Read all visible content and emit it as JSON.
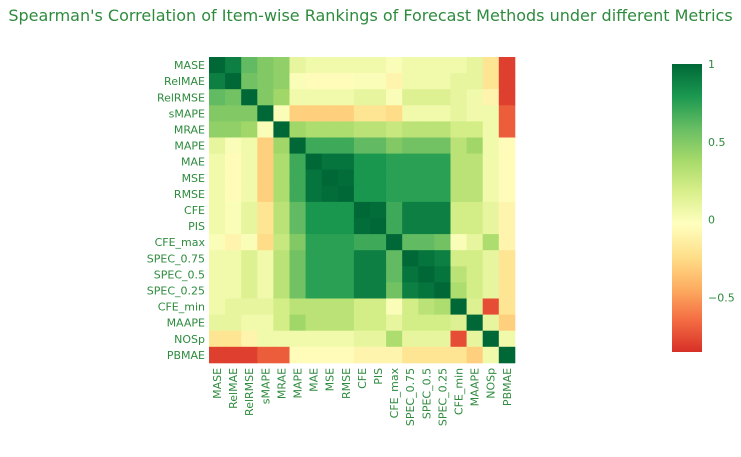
{
  "chart_data": {
    "type": "heatmap",
    "title": "Spearman's Correlation of Item-wise Rankings of Forecast Methods under different Metrics",
    "labels": [
      "MASE",
      "RelMAE",
      "RelRMSE",
      "sMAPE",
      "MRAE",
      "MAPE",
      "MAE",
      "MSE",
      "RMSE",
      "CFE",
      "PIS",
      "CFE_max",
      "SPEC_0.75",
      "SPEC_0.5",
      "SPEC_0.25",
      "CFE_min",
      "MAAPE",
      "NOSp",
      "PBMAE"
    ],
    "zrange": [
      -0.85,
      1
    ],
    "colorscale": [
      "#d73027",
      "#f46d43",
      "#fdae61",
      "#fee08b",
      "#ffffbf",
      "#d9ef8b",
      "#a6d96a",
      "#66bd63",
      "#1a9850",
      "#006837"
    ],
    "colorbar_ticks": [
      1,
      0.5,
      0,
      -0.5
    ],
    "colorbar_tick_labels": [
      "1",
      "0.5",
      "0",
      "−0.5"
    ],
    "matrix": [
      [
        1,
        0.9,
        0.6,
        0.5,
        0.45,
        0.1,
        0.05,
        0.05,
        0.05,
        0.05,
        0.05,
        0.0,
        0.05,
        0.05,
        0.05,
        0.05,
        0.1,
        -0.2,
        -0.8
      ],
      [
        0.9,
        1,
        0.55,
        0.5,
        0.45,
        0.0,
        -0.05,
        -0.05,
        -0.05,
        0.0,
        0.0,
        -0.1,
        0.05,
        0.05,
        0.05,
        0.1,
        0.1,
        -0.2,
        -0.8
      ],
      [
        0.6,
        0.55,
        1,
        0.5,
        0.4,
        0.05,
        0.05,
        0.05,
        0.05,
        0.1,
        0.1,
        0.0,
        0.15,
        0.15,
        0.15,
        0.1,
        0.05,
        -0.1,
        -0.8
      ],
      [
        0.5,
        0.5,
        0.5,
        1,
        0.0,
        -0.3,
        -0.3,
        -0.3,
        -0.3,
        -0.2,
        -0.2,
        -0.25,
        0.05,
        0.05,
        0.05,
        0.1,
        0.05,
        0.05,
        -0.7
      ],
      [
        0.45,
        0.45,
        0.4,
        0.0,
        1,
        0.4,
        0.35,
        0.35,
        0.35,
        0.3,
        0.3,
        0.25,
        0.3,
        0.3,
        0.3,
        0.2,
        0.2,
        0.05,
        -0.7
      ],
      [
        0.1,
        0.0,
        0.05,
        -0.3,
        0.4,
        1,
        0.7,
        0.7,
        0.7,
        0.6,
        0.6,
        0.5,
        0.55,
        0.55,
        0.55,
        0.3,
        0.4,
        0.05,
        -0.05
      ],
      [
        0.05,
        -0.05,
        0.05,
        -0.3,
        0.35,
        0.7,
        1,
        0.95,
        0.95,
        0.8,
        0.8,
        0.75,
        0.75,
        0.75,
        0.75,
        0.3,
        0.3,
        0.05,
        -0.05
      ],
      [
        0.05,
        -0.05,
        0.05,
        -0.3,
        0.35,
        0.7,
        0.95,
        1,
        0.98,
        0.8,
        0.8,
        0.75,
        0.75,
        0.75,
        0.75,
        0.3,
        0.3,
        0.05,
        -0.05
      ],
      [
        0.05,
        -0.05,
        0.05,
        -0.3,
        0.35,
        0.7,
        0.95,
        0.98,
        1,
        0.8,
        0.8,
        0.75,
        0.75,
        0.75,
        0.75,
        0.3,
        0.3,
        0.05,
        -0.05
      ],
      [
        0.05,
        0.0,
        0.1,
        -0.2,
        0.3,
        0.6,
        0.8,
        0.8,
        0.8,
        1,
        0.98,
        0.7,
        0.9,
        0.9,
        0.9,
        0.2,
        0.2,
        0.1,
        -0.1
      ],
      [
        0.05,
        0.0,
        0.1,
        -0.2,
        0.3,
        0.6,
        0.8,
        0.8,
        0.8,
        0.98,
        1,
        0.7,
        0.9,
        0.9,
        0.9,
        0.2,
        0.2,
        0.1,
        -0.1
      ],
      [
        0.0,
        -0.1,
        0.0,
        -0.25,
        0.25,
        0.5,
        0.75,
        0.75,
        0.75,
        0.7,
        0.7,
        1,
        0.6,
        0.6,
        0.55,
        0.0,
        0.1,
        0.35,
        -0.1
      ],
      [
        0.05,
        0.05,
        0.15,
        0.05,
        0.3,
        0.55,
        0.75,
        0.75,
        0.75,
        0.9,
        0.9,
        0.6,
        1,
        0.95,
        0.9,
        0.2,
        0.2,
        0.1,
        -0.2
      ],
      [
        0.05,
        0.05,
        0.15,
        0.05,
        0.3,
        0.55,
        0.75,
        0.75,
        0.75,
        0.9,
        0.9,
        0.6,
        0.95,
        1,
        0.95,
        0.3,
        0.2,
        0.1,
        -0.2
      ],
      [
        0.05,
        0.05,
        0.15,
        0.05,
        0.3,
        0.55,
        0.75,
        0.75,
        0.75,
        0.9,
        0.9,
        0.55,
        0.9,
        0.95,
        1,
        0.35,
        0.2,
        0.1,
        -0.2
      ],
      [
        0.05,
        0.1,
        0.1,
        0.1,
        0.2,
        0.3,
        0.3,
        0.3,
        0.3,
        0.2,
        0.2,
        0.0,
        0.2,
        0.3,
        0.35,
        1,
        0.15,
        -0.75,
        -0.2
      ],
      [
        0.1,
        0.1,
        0.05,
        0.05,
        0.2,
        0.4,
        0.3,
        0.3,
        0.3,
        0.2,
        0.2,
        0.1,
        0.2,
        0.2,
        0.2,
        0.15,
        1,
        0.1,
        -0.3
      ],
      [
        -0.2,
        -0.2,
        -0.1,
        0.05,
        0.05,
        0.05,
        0.05,
        0.05,
        0.05,
        0.1,
        0.1,
        0.35,
        0.1,
        0.1,
        0.1,
        -0.75,
        0.1,
        1,
        0.05
      ],
      [
        -0.8,
        -0.8,
        -0.8,
        -0.7,
        -0.7,
        -0.05,
        -0.05,
        -0.05,
        -0.05,
        -0.1,
        -0.1,
        -0.1,
        -0.2,
        -0.2,
        -0.2,
        -0.2,
        -0.3,
        0.05,
        1
      ]
    ]
  }
}
